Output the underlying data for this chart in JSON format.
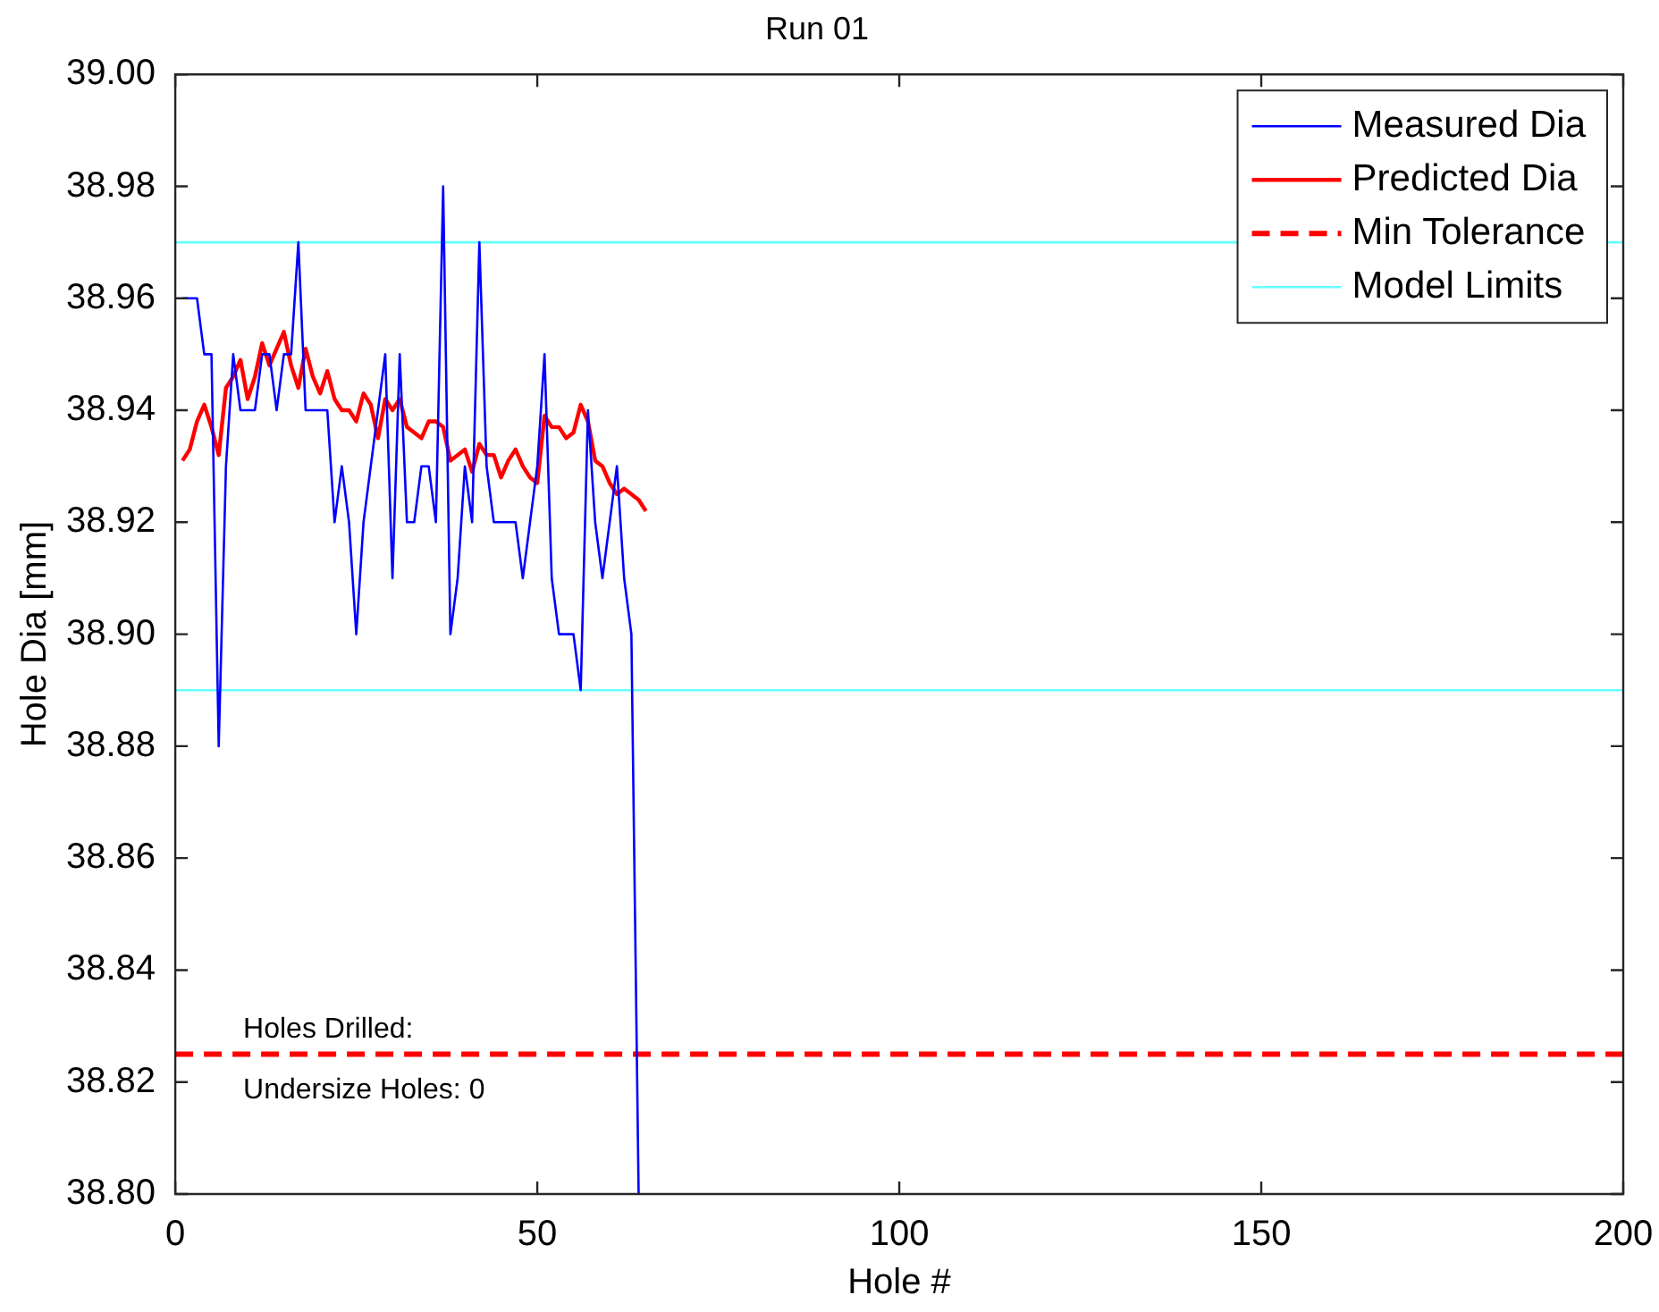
{
  "chart_data": {
    "type": "line",
    "title": "Run 01",
    "xlabel": "Hole #",
    "ylabel": "Hole Dia [mm]",
    "xlim": [
      0,
      200
    ],
    "xticks": [
      0,
      50,
      100,
      150,
      200
    ],
    "ylim": [
      38.8,
      39.0
    ],
    "yticks": [
      {
        "value": 38.8,
        "label": "38.80"
      },
      {
        "value": 38.82,
        "label": "38.82"
      },
      {
        "value": 38.84,
        "label": "38.84"
      },
      {
        "value": 38.86,
        "label": "38.86"
      },
      {
        "value": 38.88,
        "label": "38.88"
      },
      {
        "value": 38.9,
        "label": "38.90"
      },
      {
        "value": 38.92,
        "label": "38.92"
      },
      {
        "value": 38.94,
        "label": "38.94"
      },
      {
        "value": 38.96,
        "label": "38.96"
      },
      {
        "value": 38.98,
        "label": "38.98"
      },
      {
        "value": 39.0,
        "label": "39.00"
      }
    ],
    "grid": false,
    "legend": "top right",
    "marker": "none",
    "series": [
      {
        "name": "Measured Dia",
        "color": "#0000ff",
        "line_style": "solid",
        "x": [
          1,
          2,
          3,
          4,
          5,
          6,
          7,
          8,
          9,
          10,
          11,
          12,
          13,
          14,
          15,
          16,
          17,
          18,
          19,
          20,
          21,
          22,
          23,
          24,
          25,
          26,
          27,
          28,
          29,
          30,
          31,
          32,
          33,
          34,
          35,
          36,
          37,
          38,
          39,
          40,
          41,
          42,
          43,
          44,
          45,
          46,
          47,
          48,
          49,
          50,
          51,
          52,
          53,
          54,
          55,
          56,
          57,
          58,
          59,
          60,
          61,
          62,
          63,
          64
        ],
        "values": [
          38.96,
          38.96,
          38.96,
          38.95,
          38.95,
          38.88,
          38.93,
          38.95,
          38.94,
          38.94,
          38.94,
          38.95,
          38.95,
          38.94,
          38.95,
          38.95,
          38.97,
          38.94,
          38.94,
          38.94,
          38.94,
          38.92,
          38.93,
          38.92,
          38.9,
          38.92,
          38.93,
          38.94,
          38.95,
          38.91,
          38.95,
          38.92,
          38.92,
          38.93,
          38.93,
          38.92,
          38.98,
          38.9,
          38.91,
          38.93,
          38.92,
          38.97,
          38.93,
          38.92,
          38.92,
          38.92,
          38.92,
          38.91,
          38.92,
          38.93,
          38.95,
          38.91,
          38.9,
          38.9,
          38.9,
          38.89,
          38.94,
          38.92,
          38.91,
          38.92,
          38.93,
          38.91,
          38.9,
          38.8
        ]
      },
      {
        "name": "Predicted Dia",
        "color": "#ff0000",
        "line_style": "solid",
        "x": [
          1,
          2,
          3,
          4,
          5,
          6,
          7,
          8,
          9,
          10,
          11,
          12,
          13,
          14,
          15,
          16,
          17,
          18,
          19,
          20,
          21,
          22,
          23,
          24,
          25,
          26,
          27,
          28,
          29,
          30,
          31,
          32,
          33,
          34,
          35,
          36,
          37,
          38,
          39,
          40,
          41,
          42,
          43,
          44,
          45,
          46,
          47,
          48,
          49,
          50,
          51,
          52,
          53,
          54,
          55,
          56,
          57,
          58,
          59,
          60,
          61,
          62,
          63,
          64,
          65
        ],
        "values": [
          38.931,
          38.933,
          38.938,
          38.941,
          38.937,
          38.932,
          38.944,
          38.946,
          38.949,
          38.942,
          38.946,
          38.952,
          38.948,
          38.951,
          38.954,
          38.948,
          38.944,
          38.951,
          38.946,
          38.943,
          38.947,
          38.942,
          38.94,
          38.94,
          38.938,
          38.943,
          38.941,
          38.935,
          38.942,
          38.94,
          38.942,
          38.937,
          38.936,
          38.935,
          38.938,
          38.938,
          38.937,
          38.931,
          38.932,
          38.933,
          38.929,
          38.934,
          38.932,
          38.932,
          38.928,
          38.931,
          38.933,
          38.93,
          38.928,
          38.927,
          38.939,
          38.937,
          38.937,
          38.935,
          38.936,
          38.941,
          38.938,
          38.931,
          38.93,
          38.927,
          38.925,
          38.926,
          38.925,
          38.924,
          38.922
        ]
      },
      {
        "name": "Min Tolerance",
        "color": "#ff0000",
        "line_style": "dashed",
        "x": [
          0,
          200
        ],
        "values": [
          38.825,
          38.825
        ]
      },
      {
        "name": "Model Limits",
        "color": "#66ffff",
        "line_style": "solid",
        "x": [
          0,
          200
        ],
        "values": [
          38.97,
          38.97
        ]
      },
      {
        "color": "#66ffff",
        "line_style": "solid",
        "x": [
          0,
          200
        ],
        "values": [
          38.89,
          38.89
        ]
      }
    ],
    "annotations": [
      "Holes Drilled:",
      "Undersize Holes: 0"
    ]
  }
}
